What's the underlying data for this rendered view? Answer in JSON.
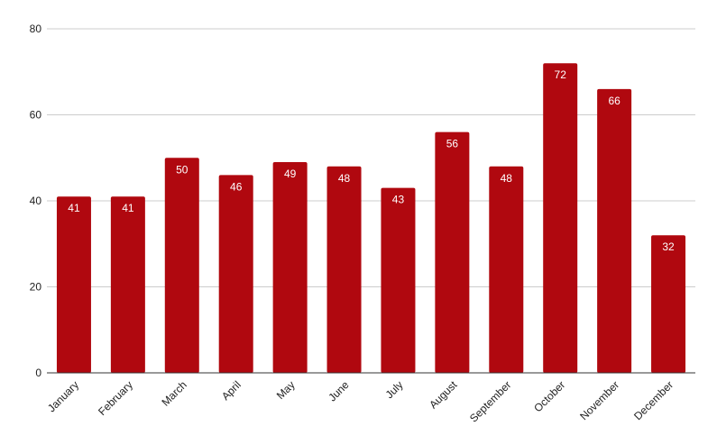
{
  "chart_data": {
    "type": "bar",
    "title": "",
    "xlabel": "",
    "ylabel": "",
    "categories": [
      "January",
      "February",
      "March",
      "April",
      "May",
      "June",
      "July",
      "August",
      "September",
      "October",
      "November",
      "December"
    ],
    "values": [
      41,
      41,
      50,
      46,
      49,
      48,
      43,
      56,
      48,
      72,
      66,
      32
    ],
    "ylim": [
      0,
      80
    ],
    "yticks": [
      0,
      20,
      40,
      60,
      80
    ],
    "grid": true,
    "legend": "none",
    "data_labels": true,
    "bar_color": "#b0080f",
    "x_tick_rotation": "45-degree"
  }
}
